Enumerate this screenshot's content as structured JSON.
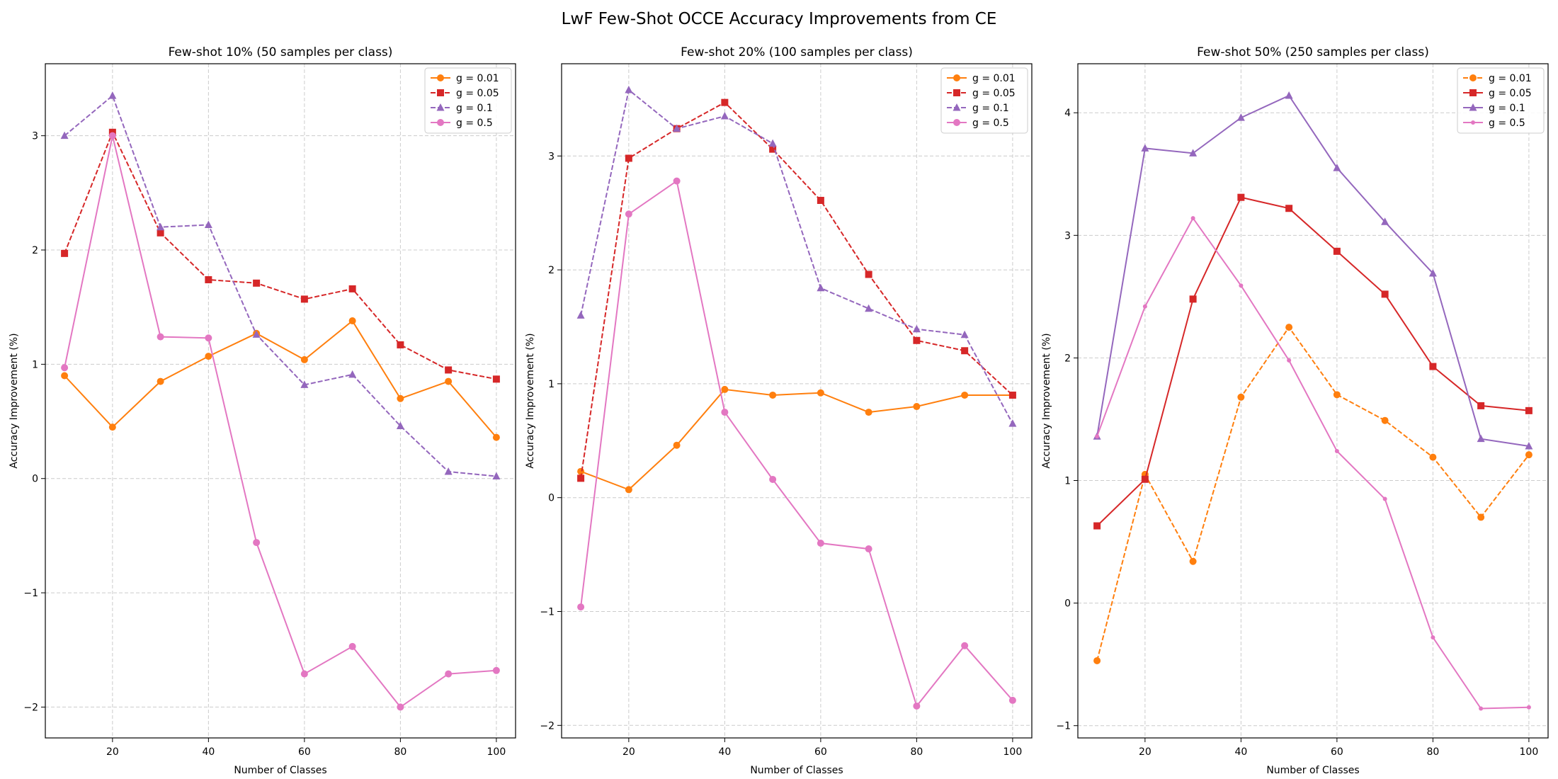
{
  "figure": {
    "title": "LwF Few-Shot OCCE Accuracy Improvements from CE"
  },
  "colors": {
    "orange": "#ff7f0e",
    "red": "#d62728",
    "purple": "#9467bd",
    "pink": "#e377c2",
    "grid": "#cccccc",
    "axis": "#000000"
  },
  "chart_data": [
    {
      "type": "line",
      "title": "Few-shot 10% (50 samples per class)",
      "xlabel": "Number of Classes",
      "ylabel": "Accuracy Improvement (%)",
      "x": [
        10,
        20,
        30,
        40,
        50,
        60,
        70,
        80,
        90,
        100
      ],
      "xlim": [
        6,
        104
      ],
      "ylim": [
        -2.27,
        3.63
      ],
      "xticks": [
        20,
        40,
        60,
        80,
        100
      ],
      "yticks": [
        -2,
        -1,
        0,
        1,
        2,
        3
      ],
      "grid": true,
      "legend_position": "upper right",
      "series": [
        {
          "name": "g = 0.01",
          "color": "orange",
          "dash": "solid",
          "marker": "circle",
          "values": [
            0.9,
            0.45,
            0.85,
            1.07,
            1.27,
            1.04,
            1.38,
            0.7,
            0.85,
            0.36
          ]
        },
        {
          "name": "g = 0.05",
          "color": "red",
          "dash": "dashed",
          "marker": "square",
          "values": [
            1.97,
            3.03,
            2.15,
            1.74,
            1.71,
            1.57,
            1.66,
            1.17,
            0.95,
            0.87
          ]
        },
        {
          "name": "g = 0.1",
          "color": "purple",
          "dash": "dashed",
          "marker": "triangle",
          "values": [
            3.0,
            3.35,
            2.2,
            2.22,
            1.26,
            0.82,
            0.91,
            0.46,
            0.06,
            0.02
          ]
        },
        {
          "name": "g = 0.5",
          "color": "pink",
          "dash": "solid",
          "marker": "circle",
          "values": [
            0.97,
            3.0,
            1.24,
            1.23,
            -0.56,
            -1.71,
            -1.47,
            -2.0,
            -1.71,
            -1.68
          ]
        }
      ]
    },
    {
      "type": "line",
      "title": "Few-shot 20% (100 samples per class)",
      "xlabel": "Number of Classes",
      "ylabel": "Accuracy Improvement (%)",
      "x": [
        10,
        20,
        30,
        40,
        50,
        60,
        70,
        80,
        90,
        100
      ],
      "xlim": [
        6,
        104
      ],
      "ylim": [
        -2.11,
        3.81
      ],
      "xticks": [
        20,
        40,
        60,
        80,
        100
      ],
      "yticks": [
        -2,
        -1,
        0,
        1,
        2,
        3
      ],
      "grid": true,
      "legend_position": "upper right",
      "series": [
        {
          "name": "g = 0.01",
          "color": "orange",
          "dash": "solid",
          "marker": "circle",
          "values": [
            0.23,
            0.07,
            0.46,
            0.95,
            0.9,
            0.92,
            0.75,
            0.8,
            0.9,
            0.9
          ]
        },
        {
          "name": "g = 0.05",
          "color": "red",
          "dash": "dashed",
          "marker": "square",
          "values": [
            0.17,
            2.98,
            3.24,
            3.47,
            3.06,
            2.61,
            1.96,
            1.38,
            1.29,
            0.9
          ]
        },
        {
          "name": "g = 0.1",
          "color": "purple",
          "dash": "dashed",
          "marker": "triangle",
          "values": [
            1.6,
            3.58,
            3.24,
            3.35,
            3.11,
            1.84,
            1.66,
            1.48,
            1.43,
            0.65
          ]
        },
        {
          "name": "g = 0.5",
          "color": "pink",
          "dash": "solid",
          "marker": "circle",
          "values": [
            -0.96,
            2.49,
            2.78,
            0.75,
            0.16,
            -0.4,
            -0.45,
            -1.83,
            -1.3,
            -1.78
          ]
        }
      ]
    },
    {
      "type": "line",
      "title": "Few-shot 50% (250 samples per class)",
      "xlabel": "Number of Classes",
      "ylabel": "Accuracy Improvement (%)",
      "x": [
        10,
        20,
        30,
        40,
        50,
        60,
        70,
        80,
        90,
        100
      ],
      "xlim": [
        6,
        104
      ],
      "ylim": [
        -1.1,
        4.4
      ],
      "xticks": [
        20,
        40,
        60,
        80,
        100
      ],
      "yticks": [
        -1,
        0,
        1,
        2,
        3,
        4
      ],
      "grid": true,
      "legend_position": "upper right",
      "series": [
        {
          "name": "g = 0.01",
          "color": "orange",
          "dash": "dashed",
          "marker": "circle",
          "values": [
            -0.47,
            1.05,
            0.34,
            1.68,
            2.25,
            1.7,
            1.49,
            1.19,
            0.7,
            1.21
          ]
        },
        {
          "name": "g = 0.05",
          "color": "red",
          "dash": "solid",
          "marker": "square",
          "values": [
            0.63,
            1.01,
            2.48,
            3.31,
            3.22,
            2.87,
            2.52,
            1.93,
            1.61,
            1.57
          ]
        },
        {
          "name": "g = 0.1",
          "color": "purple",
          "dash": "solid",
          "marker": "triangle",
          "values": [
            1.36,
            3.71,
            3.67,
            3.96,
            4.14,
            3.55,
            3.11,
            2.69,
            1.34,
            1.28
          ]
        },
        {
          "name": "g = 0.5",
          "color": "pink",
          "dash": "solid",
          "marker": "small-circle",
          "values": [
            1.36,
            2.42,
            3.14,
            2.59,
            1.98,
            1.24,
            0.85,
            -0.28,
            -0.86,
            -0.85
          ]
        }
      ]
    }
  ]
}
